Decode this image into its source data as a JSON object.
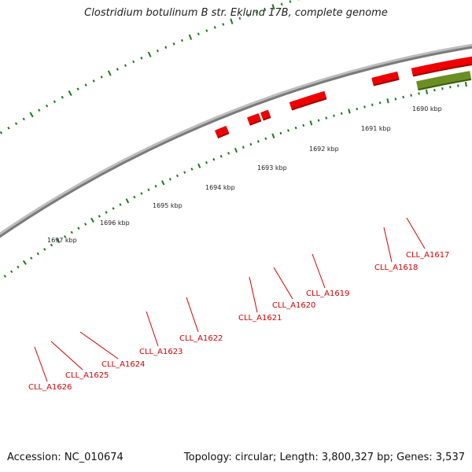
{
  "title": "Clostridium botulinum B str. Eklund 17B, complete genome",
  "footer": {
    "accession_label": "Accession:",
    "accession": "NC_010674",
    "topology_text": "Topology: circular; Length: 3,800,327 bp; Genes: 3,537"
  },
  "colors": {
    "backbone": "#7a7a7a",
    "tick": "#1a7a1a",
    "gene_forward": "#ee0000",
    "gene_forward_dark": "#a00000",
    "gene_feature": "#6b8e23",
    "gene_feature_dark": "#3d5a12",
    "label": "#d40000"
  },
  "scale_ticks": [
    {
      "label": "1690 kbp"
    },
    {
      "label": "1691 kbp"
    },
    {
      "label": "1692 kbp"
    },
    {
      "label": "1693 kbp"
    },
    {
      "label": "1694 kbp"
    },
    {
      "label": "1695 kbp"
    },
    {
      "label": "1696 kbp"
    },
    {
      "label": "1697 kbp"
    }
  ],
  "genes": [
    {
      "label": "CLL_A1617"
    },
    {
      "label": "CLL_A1618"
    },
    {
      "label": "CLL_A1619"
    },
    {
      "label": "CLL_A1620"
    },
    {
      "label": "CLL_A1621"
    },
    {
      "label": "CLL_A1622"
    },
    {
      "label": "CLL_A1623"
    },
    {
      "label": "CLL_A1624"
    },
    {
      "label": "CLL_A1625"
    },
    {
      "label": "CLL_A1626"
    }
  ]
}
